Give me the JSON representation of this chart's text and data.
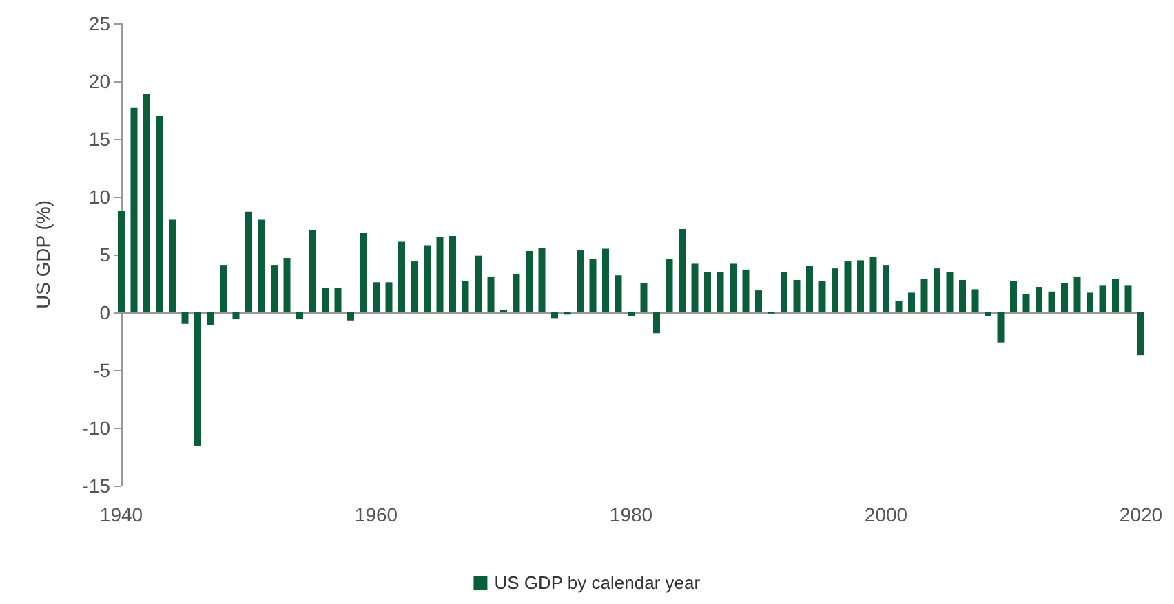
{
  "chart_data": {
    "type": "bar",
    "ylabel": "US GDP (%)",
    "x": [
      1940,
      1941,
      1942,
      1943,
      1944,
      1945,
      1946,
      1947,
      1948,
      1949,
      1950,
      1951,
      1952,
      1953,
      1954,
      1955,
      1956,
      1957,
      1958,
      1959,
      1960,
      1961,
      1962,
      1963,
      1964,
      1965,
      1966,
      1967,
      1968,
      1969,
      1970,
      1971,
      1972,
      1973,
      1974,
      1975,
      1976,
      1977,
      1978,
      1979,
      1980,
      1981,
      1982,
      1983,
      1984,
      1985,
      1986,
      1987,
      1988,
      1989,
      1990,
      1991,
      1992,
      1993,
      1994,
      1995,
      1996,
      1997,
      1998,
      1999,
      2000,
      2001,
      2002,
      2003,
      2004,
      2005,
      2006,
      2007,
      2008,
      2009,
      2010,
      2011,
      2012,
      2013,
      2014,
      2015,
      2016,
      2017,
      2018,
      2019,
      2020
    ],
    "series": [
      {
        "name": "US GDP by calendar year",
        "color": "#0b5e3a",
        "values": [
          8.8,
          17.7,
          18.9,
          17.0,
          8.0,
          -1.0,
          -11.6,
          -1.1,
          4.1,
          -0.6,
          8.7,
          8.0,
          4.1,
          4.7,
          -0.6,
          7.1,
          2.1,
          2.1,
          -0.7,
          6.9,
          2.6,
          2.6,
          6.1,
          4.4,
          5.8,
          6.5,
          6.6,
          2.7,
          4.9,
          3.1,
          0.2,
          3.3,
          5.3,
          5.6,
          -0.5,
          -0.2,
          5.4,
          4.6,
          5.5,
          3.2,
          -0.3,
          2.5,
          -1.8,
          4.6,
          7.2,
          4.2,
          3.5,
          3.5,
          4.2,
          3.7,
          1.9,
          -0.1,
          3.5,
          2.8,
          4.0,
          2.7,
          3.8,
          4.4,
          4.5,
          4.8,
          4.1,
          1.0,
          1.7,
          2.9,
          3.8,
          3.5,
          2.8,
          2.0,
          -0.3,
          -2.6,
          2.7,
          1.6,
          2.2,
          1.8,
          2.5,
          3.1,
          1.7,
          2.3,
          2.9,
          2.3,
          -3.7
        ]
      }
    ],
    "xlim": [
      1940,
      2020
    ],
    "xticks": [
      1940,
      1960,
      1980,
      2000,
      2020
    ],
    "ylim": [
      -15,
      25
    ],
    "yticks": [
      -15,
      -10,
      -5,
      0,
      5,
      10,
      15,
      20,
      25
    ],
    "legend": "bottom"
  }
}
